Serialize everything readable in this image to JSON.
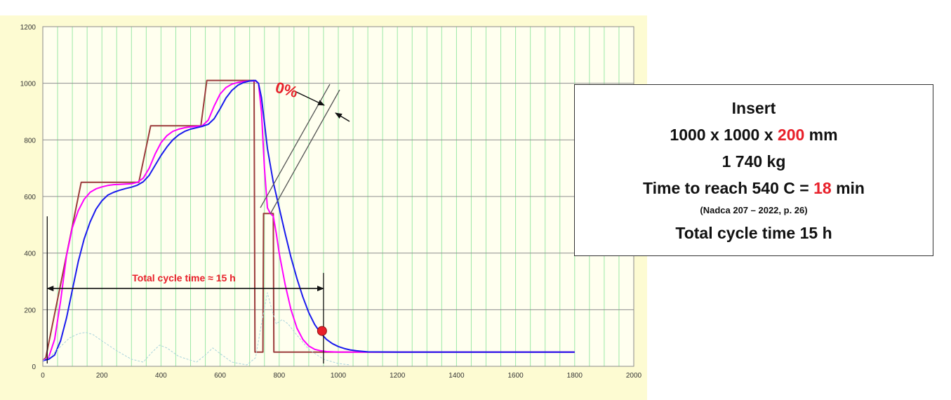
{
  "chart_data": {
    "type": "line",
    "xlim": [
      0,
      2000
    ],
    "ylim": [
      0,
      1200
    ],
    "x_ticks": [
      0,
      200,
      400,
      600,
      800,
      1000,
      1200,
      1400,
      1600,
      1800,
      2000
    ],
    "y_ticks": [
      0,
      200,
      400,
      600,
      800,
      1000,
      1200
    ],
    "grid": true,
    "colors": {
      "plot_bg": "#ffffef",
      "outer_bg": "#fdfbd2",
      "grid_v": "#9be8a6",
      "grid_h": "#8f8f8f",
      "axis_frame": "#8a8a8a"
    },
    "series": [
      {
        "color": "#9b3b3b",
        "x": [
          0,
          10,
          130,
          325,
          365,
          535,
          555,
          715,
          718,
          720,
          745,
          747,
          780,
          782,
          1800
        ],
        "y": [
          20,
          30,
          650,
          650,
          850,
          850,
          1010,
          1010,
          50,
          50,
          50,
          540,
          540,
          50,
          50
        ]
      },
      {
        "color": "#ff00ff",
        "x": [
          0,
          20,
          40,
          60,
          80,
          100,
          120,
          140,
          160,
          180,
          200,
          220,
          240,
          260,
          280,
          300,
          320,
          340,
          360,
          380,
          400,
          420,
          440,
          460,
          480,
          500,
          520,
          540,
          560,
          580,
          600,
          620,
          640,
          660,
          680,
          700,
          720,
          730,
          740,
          750,
          760,
          770,
          780,
          790,
          800,
          820,
          840,
          860,
          880,
          900,
          920,
          940,
          960,
          980,
          1000,
          1040,
          1080,
          1120,
          1200,
          1800
        ],
        "y": [
          20,
          32,
          95,
          230,
          390,
          490,
          550,
          590,
          615,
          627,
          634,
          639,
          642,
          643,
          644,
          645,
          650,
          665,
          700,
          750,
          790,
          815,
          830,
          838,
          843,
          846,
          848,
          850,
          870,
          920,
          962,
          985,
          997,
          1003,
          1006,
          1008,
          1008,
          1000,
          900,
          700,
          560,
          540,
          530,
          470,
          400,
          290,
          200,
          135,
          95,
          72,
          60,
          55,
          52,
          51,
          50,
          50,
          50,
          50,
          50,
          50
        ]
      },
      {
        "color": "#1a1aee",
        "x": [
          0,
          20,
          40,
          60,
          80,
          100,
          120,
          140,
          160,
          180,
          200,
          220,
          240,
          260,
          280,
          300,
          320,
          340,
          360,
          380,
          400,
          420,
          440,
          460,
          480,
          500,
          520,
          540,
          560,
          580,
          600,
          620,
          640,
          660,
          680,
          700,
          720,
          730,
          740,
          750,
          760,
          780,
          800,
          820,
          840,
          860,
          880,
          900,
          920,
          940,
          960,
          980,
          1000,
          1020,
          1040,
          1060,
          1080,
          1100,
          1200,
          1800
        ],
        "y": [
          20,
          25,
          40,
          90,
          170,
          270,
          370,
          450,
          510,
          555,
          585,
          605,
          615,
          622,
          628,
          633,
          640,
          652,
          675,
          710,
          745,
          775,
          800,
          818,
          830,
          838,
          843,
          848,
          855,
          875,
          910,
          948,
          975,
          993,
          1003,
          1008,
          1010,
          1000,
          950,
          860,
          770,
          650,
          560,
          470,
          385,
          310,
          245,
          190,
          148,
          118,
          95,
          80,
          70,
          63,
          58,
          55,
          53,
          51,
          50,
          50
        ]
      },
      {
        "color": "#a9d4dc",
        "dashed": true,
        "x": [
          0,
          30,
          60,
          90,
          120,
          145,
          170,
          200,
          250,
          300,
          340,
          370,
          395,
          420,
          460,
          520,
          550,
          575,
          600,
          640,
          690,
          720,
          740,
          760,
          775,
          790,
          810,
          830,
          860,
          900,
          950,
          1000,
          1040
        ],
        "y": [
          20,
          40,
          70,
          100,
          115,
          120,
          112,
          90,
          55,
          25,
          15,
          50,
          75,
          65,
          35,
          15,
          40,
          65,
          45,
          15,
          5,
          30,
          150,
          260,
          200,
          150,
          165,
          150,
          110,
          60,
          25,
          10,
          5
        ]
      }
    ],
    "annotations": {
      "cycle_label": "Total cycle time ≈  15 h",
      "cycle_start_x": 15,
      "cycle_end_x": 950,
      "cycle_y": 275,
      "marker": {
        "x": 945,
        "y": 125,
        "color": "#e8202a"
      },
      "percent_label": "0%"
    }
  },
  "info_box": {
    "title": "Insert",
    "dims_prefix": "1000 x 1000 x ",
    "dims_highlight": "200",
    "dims_suffix": " mm",
    "mass": "1 740 kg",
    "time_prefix": "Time to reach 540 C = ",
    "time_highlight": "18",
    "time_suffix": " min",
    "reference": "(Nadca 207 – 2022, p. 26)",
    "total": "Total cycle time 15 h"
  }
}
